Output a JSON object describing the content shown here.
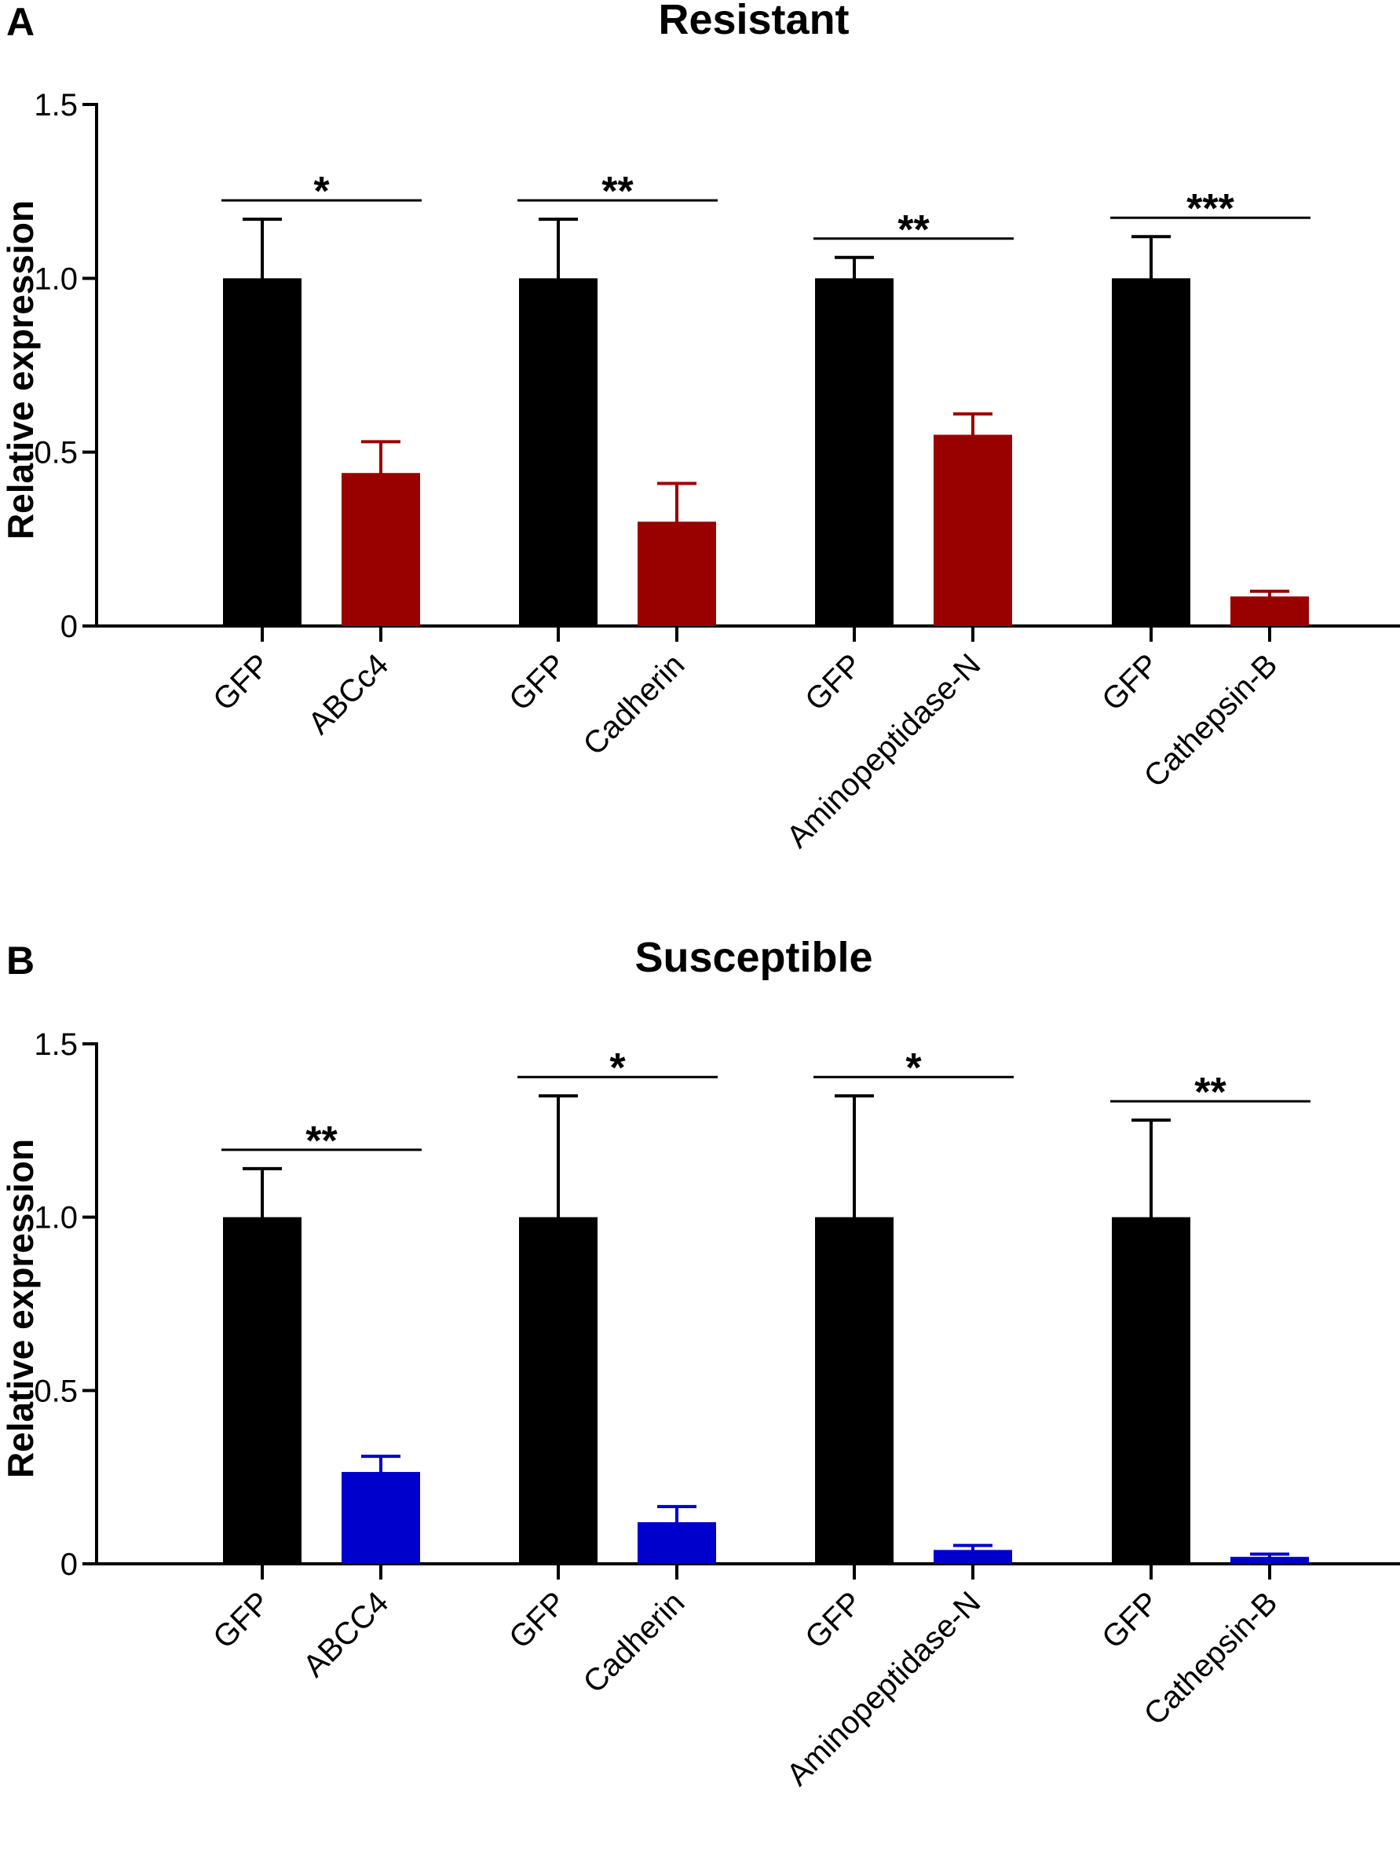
{
  "chart_data": [
    {
      "type": "bar",
      "panel_label": "A",
      "title": "Resistant",
      "xlabel": "",
      "ylabel": "Relative expression",
      "ylim": [
        0,
        1.5
      ],
      "yticks": [
        {
          "value": 0,
          "label": "0"
        },
        {
          "value": 0.5,
          "label": "0.5"
        },
        {
          "value": 1.0,
          "label": "1.0"
        },
        {
          "value": 1.5,
          "label": "1.5"
        }
      ],
      "groups": [
        {
          "significance": "*",
          "bars": [
            {
              "category": "GFP",
              "value": 1.0,
              "error": 0.17,
              "color": "#000000"
            },
            {
              "category": "ABCc4",
              "value": 0.44,
              "error": 0.09,
              "color": "#990000"
            }
          ]
        },
        {
          "significance": "**",
          "bars": [
            {
              "category": "GFP",
              "value": 1.0,
              "error": 0.17,
              "color": "#000000"
            },
            {
              "category": "Cadherin",
              "value": 0.3,
              "error": 0.11,
              "color": "#990000"
            }
          ]
        },
        {
          "significance": "**",
          "bars": [
            {
              "category": "GFP",
              "value": 1.0,
              "error": 0.06,
              "color": "#000000"
            },
            {
              "category": "Aminopeptidase-N",
              "value": 0.55,
              "error": 0.06,
              "color": "#990000"
            }
          ]
        },
        {
          "significance": "***",
          "bars": [
            {
              "category": "GFP",
              "value": 1.0,
              "error": 0.12,
              "color": "#000000"
            },
            {
              "category": "Cathepsin-B",
              "value": 0.085,
              "error": 0.015,
              "color": "#990000"
            }
          ]
        }
      ]
    },
    {
      "type": "bar",
      "panel_label": "B",
      "title": "Susceptible",
      "xlabel": "",
      "ylabel": "Relative expression",
      "ylim": [
        0,
        1.5
      ],
      "yticks": [
        {
          "value": 0,
          "label": "0"
        },
        {
          "value": 0.5,
          "label": "0.5"
        },
        {
          "value": 1.0,
          "label": "1.0"
        },
        {
          "value": 1.5,
          "label": "1.5"
        }
      ],
      "groups": [
        {
          "significance": "**",
          "bars": [
            {
              "category": "GFP",
              "value": 1.0,
              "error": 0.14,
              "color": "#000000"
            },
            {
              "category": "ABCC4",
              "value": 0.265,
              "error": 0.045,
              "color": "#0000cc"
            }
          ]
        },
        {
          "significance": "*",
          "bars": [
            {
              "category": "GFP",
              "value": 1.0,
              "error": 0.35,
              "color": "#000000"
            },
            {
              "category": "Cadherin",
              "value": 0.12,
              "error": 0.045,
              "color": "#0000cc"
            }
          ]
        },
        {
          "significance": "*",
          "bars": [
            {
              "category": "GFP",
              "value": 1.0,
              "error": 0.35,
              "color": "#000000"
            },
            {
              "category": "Aminopeptidase-N",
              "value": 0.04,
              "error": 0.013,
              "color": "#0000cc"
            }
          ]
        },
        {
          "significance": "**",
          "bars": [
            {
              "category": "GFP",
              "value": 1.0,
              "error": 0.28,
              "color": "#000000"
            },
            {
              "category": "Cathepsin-B",
              "value": 0.02,
              "error": 0.008,
              "color": "#0000cc"
            }
          ]
        }
      ]
    }
  ]
}
